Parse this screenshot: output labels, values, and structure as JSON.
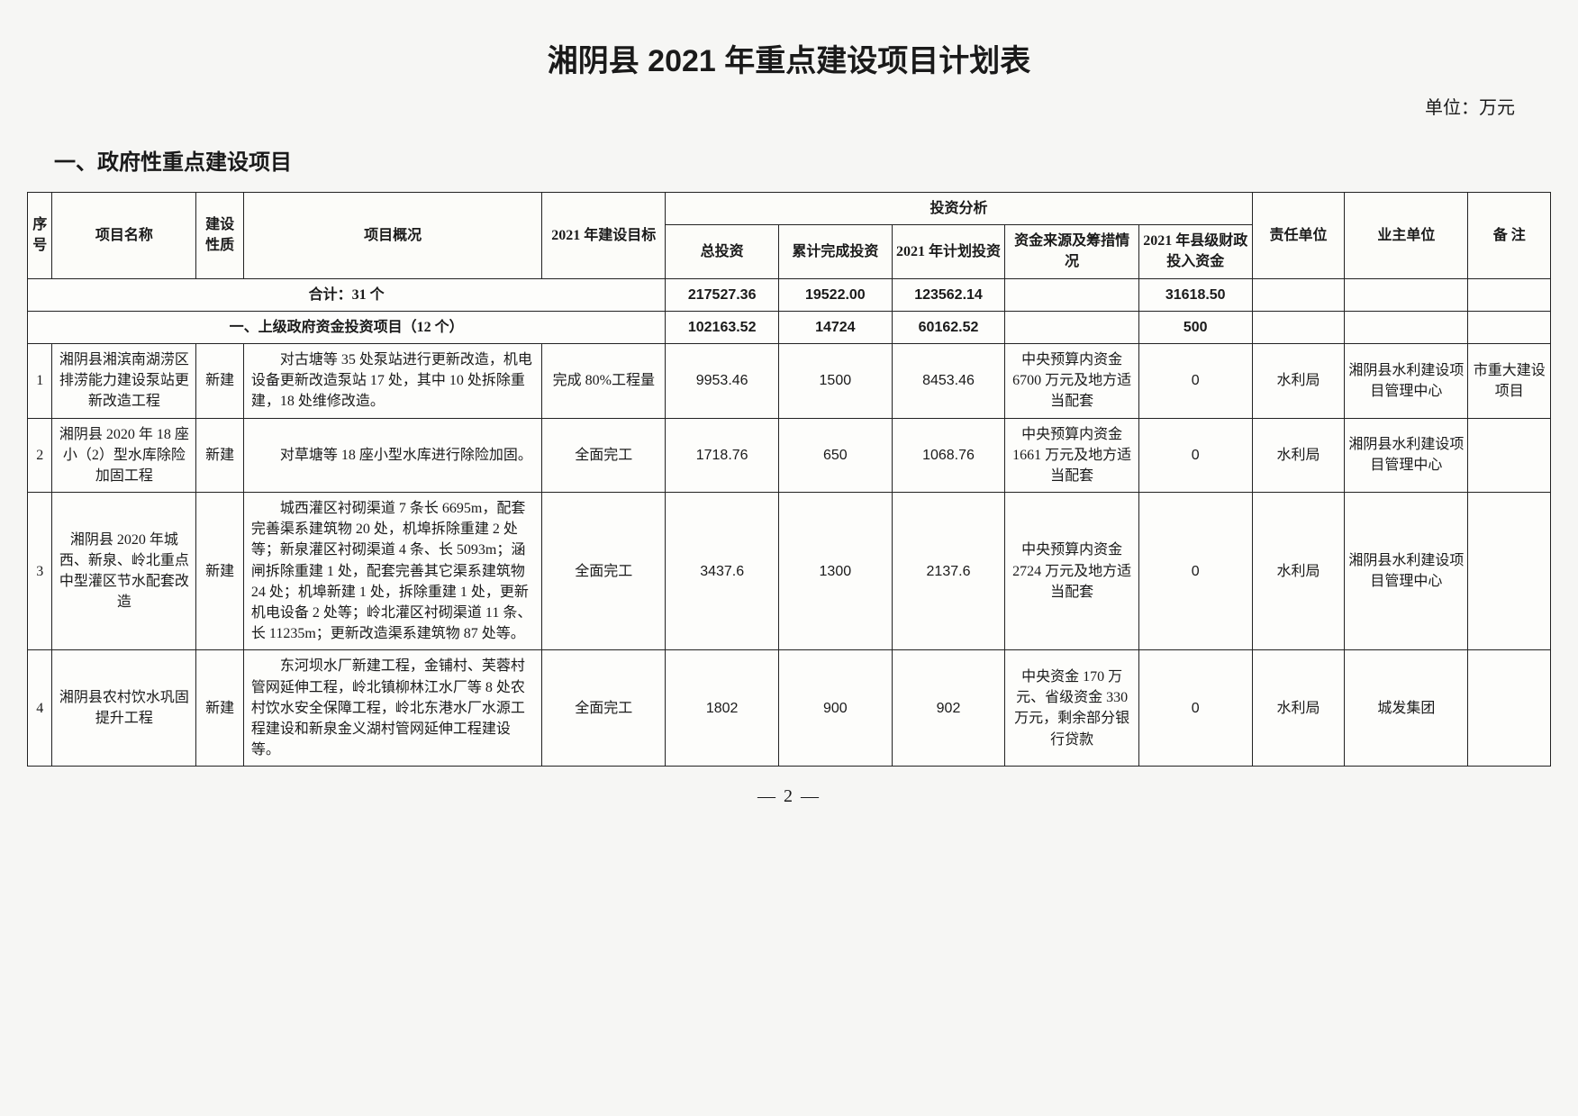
{
  "title": "湘阴县 2021 年重点建设项目计划表",
  "unit": "单位：万元",
  "section_heading": "一、政府性重点建设项目",
  "page_num": "— 2 —",
  "headers": {
    "seq": "序号",
    "name": "项目名称",
    "type": "建设性质",
    "desc": "项目概况",
    "goal": "2021 年建设目标",
    "inv_group": "投资分析",
    "inv_total": "总投资",
    "inv_cum": "累计完成投资",
    "inv_plan": "2021 年计划投资",
    "inv_src": "资金来源及筹措情况",
    "inv_county": "2021 年县级财政投入资金",
    "resp": "责任单位",
    "owner": "业主单位",
    "note": "备 注"
  },
  "totals": {
    "label": "合计：31 个",
    "inv_total": "217527.36",
    "inv_cum": "19522.00",
    "inv_plan": "123562.14",
    "inv_src": "",
    "inv_county": "31618.50"
  },
  "subsection": {
    "label": "一、上级政府资金投资项目（12 个）",
    "inv_total": "102163.52",
    "inv_cum": "14724",
    "inv_plan": "60162.52",
    "inv_src": "",
    "inv_county": "500"
  },
  "rows": [
    {
      "seq": "1",
      "name": "湘阴县湘滨南湖涝区排涝能力建设泵站更新改造工程",
      "type": "新建",
      "desc": "对古塘等 35 处泵站进行更新改造，机电设备更新改造泵站 17 处，其中 10 处拆除重建，18 处维修改造。",
      "goal": "完成 80%工程量",
      "inv_total": "9953.46",
      "inv_cum": "1500",
      "inv_plan": "8453.46",
      "inv_src": "中央预算内资金 6700 万元及地方适当配套",
      "inv_county": "0",
      "resp": "水利局",
      "owner": "湘阴县水利建设项目管理中心",
      "note": "市重大建设项目"
    },
    {
      "seq": "2",
      "name": "湘阴县 2020 年 18 座小（2）型水库除险加固工程",
      "type": "新建",
      "desc": "对草塘等 18 座小型水库进行除险加固。",
      "goal": "全面完工",
      "inv_total": "1718.76",
      "inv_cum": "650",
      "inv_plan": "1068.76",
      "inv_src": "中央预算内资金 1661 万元及地方适当配套",
      "inv_county": "0",
      "resp": "水利局",
      "owner": "湘阴县水利建设项目管理中心",
      "note": ""
    },
    {
      "seq": "3",
      "name": "湘阴县 2020 年城西、新泉、岭北重点中型灌区节水配套改造",
      "type": "新建",
      "desc": "城西灌区衬砌渠道 7 条长 6695m，配套完善渠系建筑物 20 处，机埠拆除重建 2 处等；新泉灌区衬砌渠道 4 条、长 5093m；涵闸拆除重建 1 处，配套完善其它渠系建筑物 24 处；机埠新建 1 处，拆除重建 1 处，更新机电设备 2 处等；岭北灌区衬砌渠道 11 条、长 11235m；更新改造渠系建筑物 87 处等。",
      "goal": "全面完工",
      "inv_total": "3437.6",
      "inv_cum": "1300",
      "inv_plan": "2137.6",
      "inv_src": "中央预算内资金 2724 万元及地方适当配套",
      "inv_county": "0",
      "resp": "水利局",
      "owner": "湘阴县水利建设项目管理中心",
      "note": ""
    },
    {
      "seq": "4",
      "name": "湘阴县农村饮水巩固提升工程",
      "type": "新建",
      "desc": "东河坝水厂新建工程，金铺村、芙蓉村管网延伸工程，岭北镇柳林江水厂等 8 处农村饮水安全保障工程，岭北东港水厂水源工程建设和新泉金义湖村管网延伸工程建设等。",
      "goal": "全面完工",
      "inv_total": "1802",
      "inv_cum": "900",
      "inv_plan": "902",
      "inv_src": "中央资金 170 万元、省级资金 330 万元，剩余部分银行贷款",
      "inv_county": "0",
      "resp": "水利局",
      "owner": "城发集团",
      "note": ""
    }
  ]
}
